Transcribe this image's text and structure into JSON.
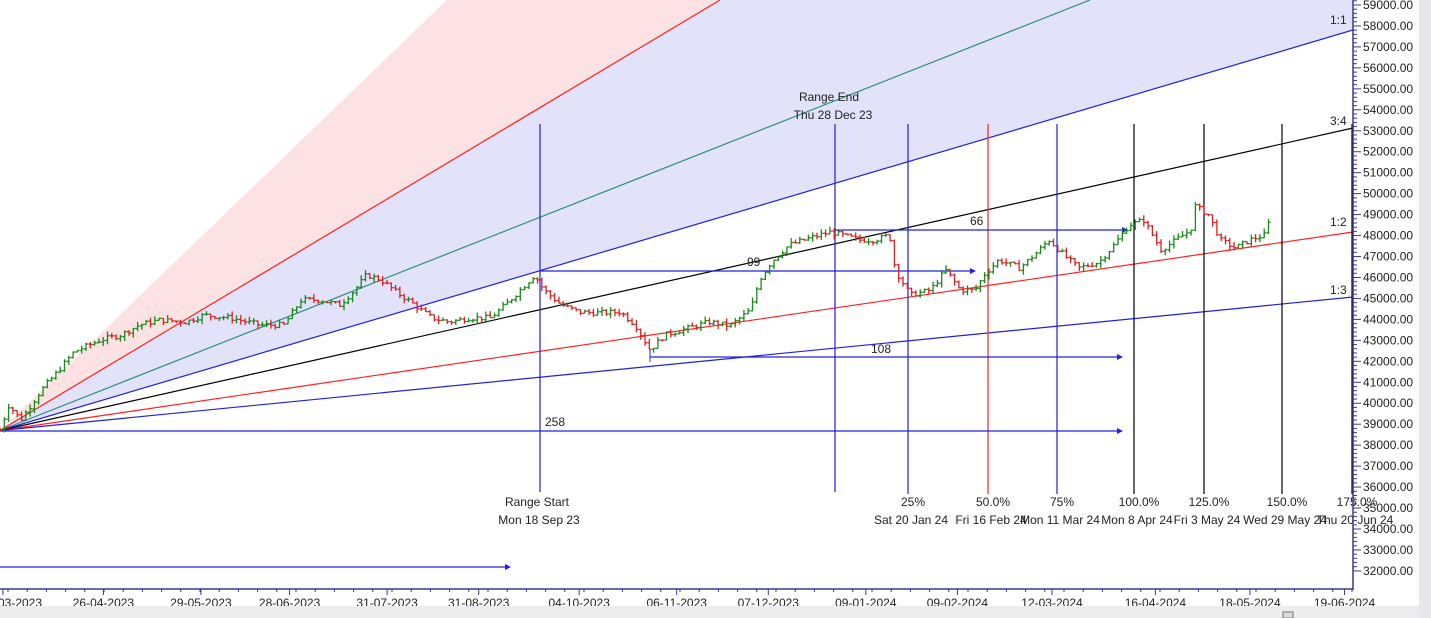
{
  "chart_data": {
    "type": "ohlc-bar",
    "title": "",
    "colors": {
      "up": "#1a8a1a",
      "down": "#e02020",
      "fan_shade_upper": "#fde2e4",
      "fan_shade_main": "#e2e2fa",
      "axis": "#3a3a8c"
    },
    "y_axis": {
      "range": [
        32000,
        59000
      ],
      "step": 1000,
      "position": "right",
      "decimals": 2
    },
    "x_axis": {
      "range": [
        "2023-03-22",
        "2024-06-28"
      ],
      "tick_labels": [
        {
          "date": "2023-03-23",
          "label": "03-2023"
        },
        {
          "date": "2023-04-26",
          "label": "26-04-2023"
        },
        {
          "date": "2023-05-29",
          "label": "29-05-2023"
        },
        {
          "date": "2023-06-28",
          "label": "28-06-2023"
        },
        {
          "date": "2023-07-31",
          "label": "31-07-2023"
        },
        {
          "date": "2023-08-31",
          "label": "31-08-2023"
        },
        {
          "date": "2023-10-04",
          "label": "04-10-2023"
        },
        {
          "date": "2023-11-06",
          "label": "06-11-2023"
        },
        {
          "date": "2023-12-07",
          "label": "07-12-2023"
        },
        {
          "date": "2024-01-09",
          "label": "09-01-2024"
        },
        {
          "date": "2024-02-09",
          "label": "09-02-2024"
        },
        {
          "date": "2024-03-12",
          "label": "12-03-2024"
        },
        {
          "date": "2024-04-16",
          "label": "16-04-2024"
        },
        {
          "date": "2024-05-18",
          "label": "18-05-2024"
        },
        {
          "date": "2024-06-19",
          "label": "19-06-2024"
        }
      ]
    },
    "price_closes": [
      [
        "2023-03-22",
        38720
      ],
      [
        "2023-03-25",
        39920
      ],
      [
        "2023-03-29",
        39200
      ],
      [
        "2023-04-05",
        40630
      ],
      [
        "2023-04-11",
        41590
      ],
      [
        "2023-04-16",
        42450
      ],
      [
        "2023-04-25",
        43020
      ],
      [
        "2023-05-02",
        43260
      ],
      [
        "2023-05-08",
        43730
      ],
      [
        "2023-05-15",
        43970
      ],
      [
        "2023-05-24",
        43880
      ],
      [
        "2023-05-30",
        44210
      ],
      [
        "2023-06-08",
        44070
      ],
      [
        "2023-06-18",
        43730
      ],
      [
        "2023-06-26",
        43730
      ],
      [
        "2023-07-02",
        44930
      ],
      [
        "2023-07-08",
        44930
      ],
      [
        "2023-07-15",
        44690
      ],
      [
        "2023-07-20",
        45400
      ],
      [
        "2023-07-24",
        46120
      ],
      [
        "2023-07-29",
        45880
      ],
      [
        "2023-08-03",
        45310
      ],
      [
        "2023-08-08",
        44830
      ],
      [
        "2023-08-15",
        44070
      ],
      [
        "2023-08-21",
        43880
      ],
      [
        "2023-08-28",
        44070
      ],
      [
        "2023-09-04",
        44070
      ],
      [
        "2023-09-09",
        44690
      ],
      [
        "2023-09-14",
        45400
      ],
      [
        "2023-09-19",
        46120
      ],
      [
        "2023-09-22",
        45400
      ],
      [
        "2023-09-28",
        44690
      ],
      [
        "2023-10-04",
        44350
      ],
      [
        "2023-10-11",
        44310
      ],
      [
        "2023-10-18",
        44350
      ],
      [
        "2023-10-23",
        43730
      ],
      [
        "2023-10-28",
        42540
      ],
      [
        "2023-11-02",
        43260
      ],
      [
        "2023-11-10",
        43590
      ],
      [
        "2023-11-17",
        43880
      ],
      [
        "2023-11-24",
        43690
      ],
      [
        "2023-12-01",
        44450
      ],
      [
        "2023-12-04",
        45880
      ],
      [
        "2023-12-08",
        46740
      ],
      [
        "2023-12-14",
        47550
      ],
      [
        "2023-12-21",
        47880
      ],
      [
        "2023-12-28",
        48170
      ],
      [
        "2024-01-02",
        47980
      ],
      [
        "2024-01-07",
        47790
      ],
      [
        "2024-01-12",
        47790
      ],
      [
        "2024-01-17",
        48030
      ],
      [
        "2024-01-19",
        46360
      ],
      [
        "2024-01-24",
        45160
      ],
      [
        "2024-01-31",
        45400
      ],
      [
        "2024-02-05",
        46360
      ],
      [
        "2024-02-10",
        45400
      ],
      [
        "2024-02-15",
        45400
      ],
      [
        "2024-02-18",
        46120
      ],
      [
        "2024-02-23",
        46840
      ],
      [
        "2024-03-01",
        46450
      ],
      [
        "2024-03-06",
        47070
      ],
      [
        "2024-03-11",
        47790
      ],
      [
        "2024-03-16",
        47070
      ],
      [
        "2024-03-21",
        46450
      ],
      [
        "2024-03-28",
        46740
      ],
      [
        "2024-04-02",
        47550
      ],
      [
        "2024-04-07",
        48500
      ],
      [
        "2024-04-12",
        48740
      ],
      [
        "2024-04-18",
        47310
      ],
      [
        "2024-04-23",
        47790
      ],
      [
        "2024-04-28",
        48270
      ],
      [
        "2024-04-29",
        49460
      ],
      [
        "2024-05-04",
        48980
      ],
      [
        "2024-05-08",
        47790
      ],
      [
        "2024-05-13",
        47410
      ],
      [
        "2024-05-18",
        47790
      ],
      [
        "2024-05-23",
        48030
      ],
      [
        "2024-05-25",
        48890
      ]
    ],
    "gann_fan": {
      "origin": {
        "date": "2023-03-22",
        "value": 38700
      },
      "labels": [
        "1:1",
        "3:4",
        "1:2",
        "1:3"
      ]
    },
    "range": {
      "start_label": "Range Start",
      "start_date": "Mon 18 Sep 23",
      "end_label": "Range End",
      "end_date": "Thu 28 Dec 23"
    },
    "time_projections": [
      {
        "pct": "25%",
        "date": "Sat 20 Jan 24"
      },
      {
        "pct": "50.0%",
        "date": "Fri 16 Feb 24"
      },
      {
        "pct": "75%",
        "date": "Mon 11 Mar 24"
      },
      {
        "pct": "100.0%",
        "date": "Mon 8 Apr 24"
      },
      {
        "pct": "125.0%",
        "date": "Fri 3 May 24"
      },
      {
        "pct": "150.0%",
        "date": "Wed 29 May 24"
      },
      {
        "pct": "175.0%",
        "date": "Thu 20 Jun 24"
      }
    ],
    "bar_counts": [
      "99",
      "66",
      "108",
      "258"
    ]
  }
}
